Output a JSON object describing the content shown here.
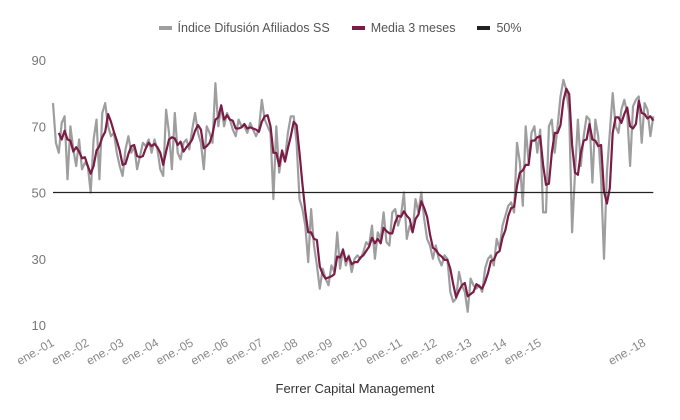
{
  "chart_data": {
    "type": "line",
    "title": "",
    "xlabel": "Ferrer Capital Management",
    "ylabel": "",
    "ylim": [
      10,
      90
    ],
    "yticks": [
      90,
      70,
      50,
      30,
      10
    ],
    "start_year": 2001,
    "x_tick_labels": [
      {
        "label": "ene.-01",
        "month_index": 0
      },
      {
        "label": "ene.-02",
        "month_index": 12
      },
      {
        "label": "ene.-03",
        "month_index": 24
      },
      {
        "label": "ene.-04",
        "month_index": 36
      },
      {
        "label": "ene.-05",
        "month_index": 48
      },
      {
        "label": "ene.-06",
        "month_index": 60
      },
      {
        "label": "ene.-07",
        "month_index": 72
      },
      {
        "label": "ene.-08",
        "month_index": 84
      },
      {
        "label": "ene.-09",
        "month_index": 96
      },
      {
        "label": "ene.-10",
        "month_index": 108
      },
      {
        "label": "ene.-11",
        "month_index": 120
      },
      {
        "label": "ene.-12",
        "month_index": 132
      },
      {
        "label": "ene.-13",
        "month_index": 144
      },
      {
        "label": "ene.-14",
        "month_index": 156
      },
      {
        "label": "ene.-15",
        "month_index": 168
      },
      {
        "label": "ene.-18",
        "month_index": 204
      }
    ],
    "legend_position": "top",
    "series": [
      {
        "name": "Índice Difusión Afiliados SS",
        "color": "#9e9e9e",
        "values": [
          77,
          65,
          62,
          71,
          73,
          54,
          70,
          63,
          58,
          66,
          57,
          59,
          58,
          50,
          66,
          72,
          54,
          74,
          77,
          70,
          67,
          68,
          62,
          58,
          55,
          63,
          67,
          62,
          64,
          57,
          61,
          65,
          64,
          66,
          62,
          66,
          63,
          57,
          55,
          75,
          68,
          57,
          74,
          62,
          60,
          65,
          66,
          63,
          69,
          74,
          68,
          65,
          57,
          70,
          68,
          65,
          83,
          70,
          76,
          70,
          74,
          72,
          69,
          67,
          72,
          70,
          70,
          68,
          71,
          69,
          67,
          69,
          78,
          72,
          70,
          68,
          48,
          70,
          56,
          62,
          60,
          68,
          73,
          73,
          65,
          48,
          45,
          40,
          29,
          45,
          34,
          28,
          21,
          27,
          24,
          22,
          28,
          26,
          38,
          27,
          33,
          28,
          31,
          26,
          30,
          31,
          30,
          32,
          35,
          34,
          40,
          30,
          38,
          36,
          44,
          35,
          34,
          44,
          45,
          40,
          43,
          50,
          36,
          40,
          38,
          48,
          44,
          50,
          42,
          36,
          34,
          30,
          34,
          30,
          28,
          31,
          30,
          20,
          17,
          18,
          26,
          22,
          20,
          14,
          24,
          22,
          21,
          22,
          20,
          27,
          30,
          31,
          28,
          36,
          33,
          40,
          43,
          46,
          47,
          44,
          65,
          59,
          46,
          70,
          59,
          68,
          70,
          62,
          69,
          44,
          44,
          70,
          72,
          62,
          70,
          79,
          84,
          81,
          74,
          38,
          56,
          72,
          58,
          67,
          73,
          72,
          53,
          72,
          67,
          54,
          30,
          56,
          68,
          80,
          70,
          68,
          75,
          78,
          74,
          58,
          76,
          78,
          79,
          65,
          77,
          75,
          67,
          73
        ]
      },
      {
        "name": "Media 3 meses",
        "color": "#7b1c46",
        "moving_average_of": 0,
        "window": 3
      },
      {
        "name": "50%",
        "color": "#222222",
        "constant": 50
      }
    ]
  }
}
